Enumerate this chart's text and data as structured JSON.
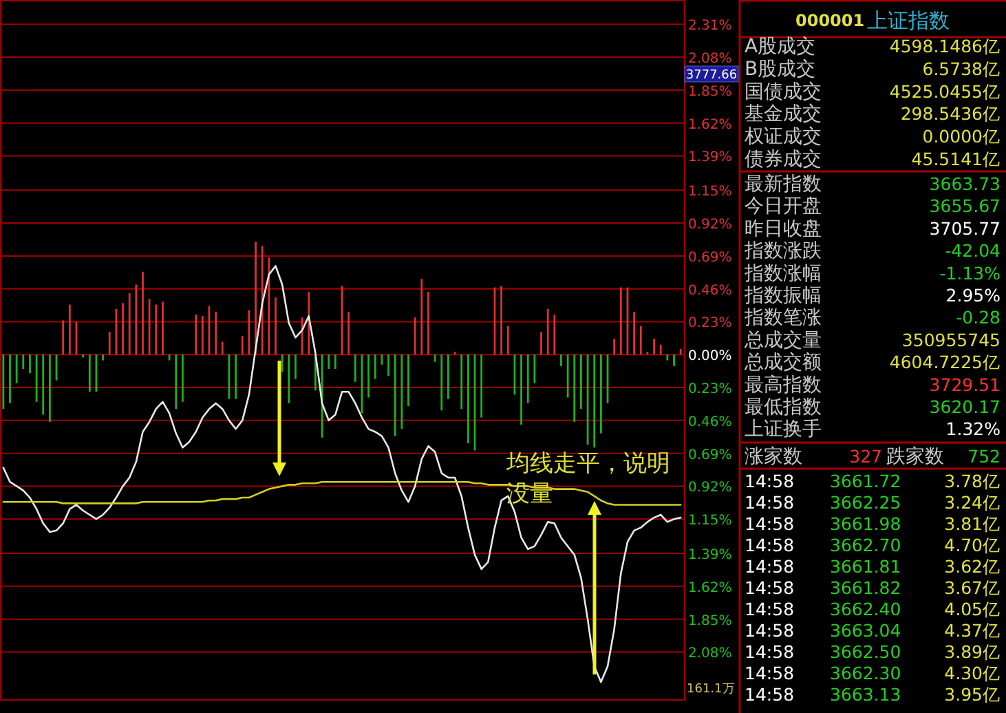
{
  "chart_data": [
    {
      "type": "bar",
      "categories": [
        null,
        null,
        null,
        null,
        null,
        null,
        null,
        null,
        null,
        null,
        null,
        null,
        null,
        null,
        null,
        null,
        null,
        null,
        null,
        null,
        null,
        null,
        null,
        null,
        null,
        null,
        null,
        null,
        null,
        null,
        null,
        null,
        null,
        null,
        null,
        null,
        null,
        null,
        null,
        null,
        null,
        null,
        null,
        null,
        null,
        null,
        null,
        null,
        null,
        null,
        null,
        null,
        null,
        null,
        null,
        null,
        null,
        null,
        null,
        null,
        null,
        null,
        null,
        null,
        null,
        null,
        null,
        null,
        null,
        null,
        null,
        null,
        null,
        null,
        null,
        null,
        null,
        null,
        null,
        null,
        null,
        null,
        null,
        null,
        null,
        null,
        null,
        null,
        null,
        null,
        null,
        null,
        null,
        null,
        null,
        null,
        null,
        null,
        null,
        null,
        null,
        null,
        null
      ],
      "ylim": [
        -2.41,
        2.48
      ],
      "yticks": [
        {
          "value": 2.31,
          "label": "2.31%"
        },
        {
          "value": 2.08,
          "label": "2.08%"
        },
        {
          "value": 1.85,
          "label": "1.85%"
        },
        {
          "value": 1.62,
          "label": "1.62%"
        },
        {
          "value": 1.39,
          "label": "1.39%"
        },
        {
          "value": 1.15,
          "label": "1.15%"
        },
        {
          "value": 0.92,
          "label": "0.92%"
        },
        {
          "value": 0.69,
          "label": "0.69%"
        },
        {
          "value": 0.46,
          "label": "0.46%"
        },
        {
          "value": 0.23,
          "label": "0.23%"
        },
        {
          "value": 0,
          "label": "0.00%"
        },
        {
          "value": -0.23,
          "label": "0.23%"
        },
        {
          "value": -0.46,
          "label": "0.46%"
        },
        {
          "value": -0.69,
          "label": "0.69%"
        },
        {
          "value": -0.92,
          "label": "0.92%"
        },
        {
          "value": -1.15,
          "label": "1.15%"
        },
        {
          "value": -1.39,
          "label": "1.39%"
        },
        {
          "value": -1.62,
          "label": "1.62%"
        },
        {
          "value": -1.85,
          "label": "1.85%"
        },
        {
          "value": -2.08,
          "label": "2.08%"
        }
      ],
      "grid": "y",
      "annotations": [
        "均线走平，说明没量",
        "3777.66",
        "161.1万"
      ],
      "series": [
        {
          "type": "bar",
          "color": "#e03030",
          "values": [
            null,
            null,
            null,
            null,
            null,
            null,
            null,
            null,
            null,
            0.24,
            0.35,
            0.23,
            null,
            null,
            null,
            null,
            0.16,
            0.32,
            0.36,
            0.43,
            0.49,
            0.58,
            0.39,
            0.35,
            0.37,
            null,
            null,
            null,
            null,
            0.28,
            0.27,
            0.34,
            0.3,
            0.09,
            null,
            null,
            0.13,
            0.31,
            0.79,
            0.76,
            0.68,
            0.4,
            null,
            null,
            null,
            0.26,
            0.44,
            null,
            null,
            null,
            null,
            0.48,
            0.3,
            null,
            null,
            null,
            null,
            null,
            null,
            null,
            null,
            null,
            0.26,
            0.53,
            0.44,
            null,
            null,
            null,
            0.02,
            null,
            null,
            null,
            null,
            null,
            0.47,
            0.48,
            0.2,
            null,
            null,
            null,
            null,
            0.16,
            0.32,
            0.28,
            null,
            null,
            null,
            null,
            null,
            null,
            null,
            null,
            0.11,
            0.47,
            0.47,
            0.3,
            0.2,
            0.02,
            0.11,
            0.07,
            null,
            null,
            0.04
          ]
        },
        {
          "type": "bar",
          "color": "#20b020",
          "values": [
            -0.38,
            -0.34,
            -0.2,
            -0.1,
            -0.13,
            -0.33,
            -0.42,
            -0.47,
            -0.18,
            null,
            null,
            null,
            -0.02,
            -0.26,
            -0.26,
            -0.04,
            null,
            null,
            null,
            null,
            null,
            null,
            null,
            null,
            null,
            -0.04,
            -0.38,
            -0.33,
            null,
            null,
            null,
            null,
            null,
            null,
            -0.31,
            -0.31,
            null,
            null,
            null,
            null,
            null,
            null,
            -0.12,
            -0.34,
            -0.17,
            null,
            null,
            -0.25,
            -0.58,
            -0.1,
            -0.1,
            null,
            null,
            -0.19,
            -0.41,
            -0.3,
            -0.17,
            -0.07,
            -0.15,
            -0.57,
            -0.52,
            -0.36,
            null,
            null,
            null,
            -0.05,
            -0.39,
            -0.31,
            null,
            -0.38,
            -0.62,
            -0.67,
            -0.44,
            null,
            null,
            null,
            null,
            -0.28,
            -0.49,
            -0.34,
            -0.2,
            null,
            null,
            null,
            -0.08,
            -0.3,
            -0.47,
            -0.38,
            -0.63,
            -0.65,
            -0.55,
            -0.34,
            null,
            null,
            null,
            null,
            null,
            null,
            null,
            null,
            -0.04,
            -0.08,
            null
          ]
        },
        {
          "type": "line",
          "color": "#e8e8e8",
          "values": [
            -0.79,
            -0.89,
            -0.92,
            -0.95,
            -1.0,
            -1.08,
            -1.18,
            -1.24,
            -1.23,
            -1.18,
            -1.08,
            -1.05,
            -1.09,
            -1.12,
            -1.15,
            -1.12,
            -1.07,
            -1.0,
            -0.92,
            -0.86,
            -0.75,
            -0.54,
            -0.47,
            -0.38,
            -0.33,
            -0.41,
            -0.55,
            -0.65,
            -0.61,
            -0.54,
            -0.44,
            -0.38,
            -0.34,
            -0.38,
            -0.46,
            -0.52,
            -0.46,
            -0.28,
            0.04,
            0.36,
            0.56,
            0.62,
            0.49,
            0.22,
            0.12,
            0.17,
            0.27,
            0.01,
            -0.34,
            -0.46,
            -0.42,
            -0.26,
            -0.26,
            -0.34,
            -0.44,
            -0.52,
            -0.54,
            -0.57,
            -0.65,
            -0.83,
            -0.95,
            -1.03,
            -0.92,
            -0.73,
            -0.64,
            -0.68,
            -0.83,
            -0.86,
            -0.86,
            -0.99,
            -1.21,
            -1.4,
            -1.5,
            -1.45,
            -1.21,
            -1.02,
            -0.99,
            -1.1,
            -1.28,
            -1.36,
            -1.34,
            -1.26,
            -1.17,
            -1.18,
            -1.28,
            -1.34,
            -1.4,
            -1.56,
            -1.85,
            -2.18,
            -2.29,
            -2.18,
            -1.92,
            -1.53,
            -1.31,
            -1.23,
            -1.21,
            -1.17,
            -1.14,
            -1.12,
            -1.17,
            -1.15,
            -1.14
          ]
        },
        {
          "type": "line",
          "color": "#d0d020",
          "values": [
            -1.03,
            -1.03,
            -1.03,
            -1.03,
            -1.03,
            -1.03,
            -1.03,
            -1.03,
            -1.03,
            -1.04,
            -1.04,
            -1.04,
            -1.04,
            -1.04,
            -1.04,
            -1.04,
            -1.04,
            -1.04,
            -1.04,
            -1.04,
            -1.04,
            -1.03,
            -1.03,
            -1.03,
            -1.03,
            -1.03,
            -1.03,
            -1.03,
            -1.03,
            -1.03,
            -1.03,
            -1.02,
            -1.02,
            -1.01,
            -1.01,
            -1.01,
            -1.0,
            -1.0,
            -0.98,
            -0.96,
            -0.94,
            -0.93,
            -0.92,
            -0.91,
            -0.91,
            -0.9,
            -0.9,
            -0.9,
            -0.89,
            -0.89,
            -0.89,
            -0.89,
            -0.89,
            -0.89,
            -0.89,
            -0.89,
            -0.89,
            -0.89,
            -0.89,
            -0.89,
            -0.89,
            -0.89,
            -0.89,
            -0.89,
            -0.89,
            -0.89,
            -0.89,
            -0.89,
            -0.89,
            -0.89,
            -0.89,
            -0.9,
            -0.9,
            -0.91,
            -0.91,
            -0.91,
            -0.91,
            -0.92,
            -0.92,
            -0.92,
            -0.93,
            -0.93,
            -0.93,
            -0.94,
            -0.94,
            -0.94,
            -0.94,
            -0.95,
            -0.96,
            -0.99,
            -1.02,
            -1.04,
            -1.05,
            -1.05,
            -1.05,
            -1.05,
            -1.05,
            -1.05,
            -1.05,
            -1.05,
            -1.05,
            -1.05,
            -1.05
          ]
        }
      ]
    },
    {
      "type": "other",
      "title": "000001",
      "subtitle": "上证指数",
      "annotations": [
        "A股成交",
        "4598.1486亿",
        "B股成交",
        "6.5738亿",
        "国债成交",
        "4525.0455亿",
        "基金成交",
        "298.5436亿",
        "权证成交",
        "0.0000亿",
        "债券成交",
        "45.5141亿",
        "最新指数",
        "3663.73",
        "今日开盘",
        "3655.67",
        "昨日收盘",
        "3705.77",
        "指数涨跌",
        "-42.04",
        "指数涨幅",
        "-1.13%",
        "指数振幅",
        "2.95%",
        "指数笔涨",
        "-0.28",
        "总成交量",
        "350955745",
        "总成交额",
        "4604.7225亿",
        "最高指数",
        "3729.51",
        "最低指数",
        "3620.17",
        "上证换手",
        "1.32%",
        "涨家数",
        "327",
        "跌家数",
        "752",
        "14:58",
        "3661.72",
        "3.78亿",
        "14:58",
        "3662.25",
        "3.24亿",
        "14:58",
        "3661.98",
        "3.81亿",
        "14:58",
        "3662.70",
        "4.70亿",
        "14:58",
        "3661.81",
        "3.62亿",
        "14:58",
        "3661.82",
        "3.67亿",
        "14:58",
        "3662.40",
        "4.05亿",
        "14:58",
        "3663.04",
        "4.37亿",
        "14:58",
        "3662.50",
        "3.89亿",
        "14:58",
        "3662.30",
        "4.30亿",
        "14:58",
        "3663.13",
        "3.95亿"
      ],
      "colors": [
        "#c8c8c8",
        "#e0e040",
        "#c8c8c8",
        "#e0e040",
        "#c8c8c8",
        "#e0e040",
        "#c8c8c8",
        "#e0e040",
        "#c8c8c8",
        "#e0e040",
        "#c8c8c8",
        "#e0e040",
        "#c8c8c8",
        "#20d020",
        "#c8c8c8",
        "#20d020",
        "#c8c8c8",
        "#ffffff",
        "#c8c8c8",
        "#20d020",
        "#c8c8c8",
        "#20d020",
        "#c8c8c8",
        "#ffffff",
        "#c8c8c8",
        "#20d020",
        "#c8c8c8",
        "#e0e040",
        "#c8c8c8",
        "#e0e040",
        "#c8c8c8",
        "#ff3030",
        "#c8c8c8",
        "#20d020",
        "#c8c8c8",
        "#ffffff",
        "#c8c8c8",
        "#ff3030",
        "#c8c8c8",
        "#20d020",
        "#ffffff",
        "#20d020",
        "#e0e040",
        "#ffffff",
        "#20d020",
        "#e0e040",
        "#ffffff",
        "#20d020",
        "#e0e040",
        "#ffffff",
        "#20d020",
        "#e0e040",
        "#ffffff",
        "#20d020",
        "#e0e040",
        "#ffffff",
        "#20d020",
        "#e0e040",
        "#ffffff",
        "#20d020",
        "#e0e040",
        "#ffffff",
        "#20d020",
        "#e0e040",
        "#ffffff",
        "#20d020",
        "#e0e040",
        "#ffffff",
        "#20d020",
        "#e0e040",
        "#ffffff",
        "#20d020",
        "#e0e040"
      ]
    }
  ]
}
